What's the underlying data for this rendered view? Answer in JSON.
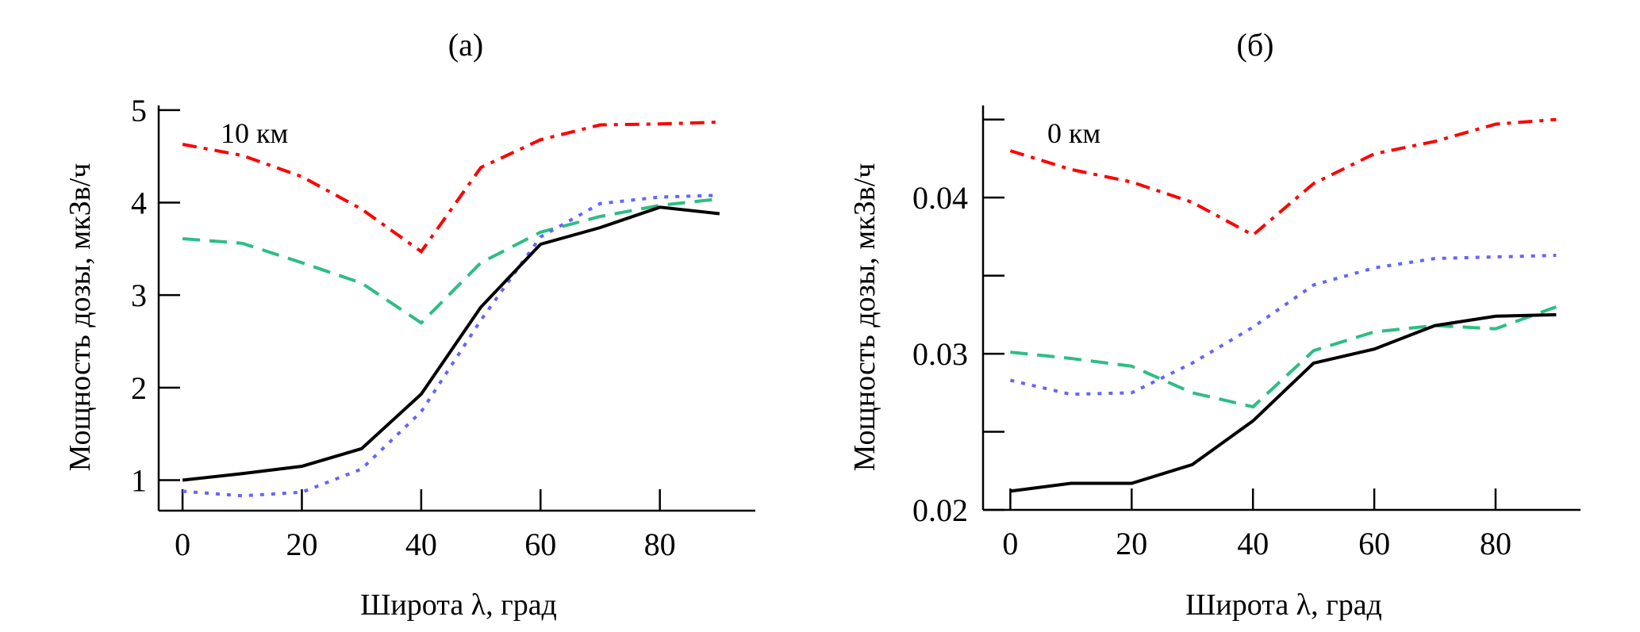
{
  "chart_data": [
    {
      "type": "line",
      "panel": "(a)",
      "title": "(a)",
      "annotation": "10 км",
      "xlabel": "Широта λ, град",
      "ylabel": "Мощность дозы, мкЗв/ч",
      "xlim": [
        -4,
        96
      ],
      "ylim": [
        0.67,
        5.05
      ],
      "xticks": [
        0,
        20,
        40,
        60,
        80
      ],
      "xtick_labels": [
        "0",
        "20",
        "40",
        "60",
        "80"
      ],
      "yticks": [
        1,
        2,
        3,
        4,
        5
      ],
      "ytick_labels": [
        "1",
        "2",
        "3",
        "4",
        "5"
      ],
      "minor_yticks": [],
      "grid": false,
      "x": [
        0,
        10,
        20,
        30,
        40,
        50,
        60,
        70,
        80,
        90
      ],
      "series": [
        {
          "name": "red-dashdot",
          "color": "#ff0000",
          "style": "dashdot",
          "values": [
            4.63,
            4.51,
            4.28,
            3.93,
            3.47,
            4.38,
            4.68,
            4.84,
            4.85,
            4.87
          ]
        },
        {
          "name": "green-dashed",
          "color": "#2ebd85",
          "style": "dashed",
          "values": [
            3.61,
            3.56,
            3.35,
            3.13,
            2.7,
            3.35,
            3.68,
            3.85,
            3.97,
            4.04
          ]
        },
        {
          "name": "blue-dotted",
          "color": "#6464ff",
          "style": "dotted",
          "values": [
            0.88,
            0.83,
            0.87,
            1.12,
            1.74,
            2.73,
            3.63,
            3.99,
            4.06,
            4.08
          ]
        },
        {
          "name": "black-solid",
          "color": "#000000",
          "style": "solid",
          "values": [
            1.0,
            1.07,
            1.15,
            1.34,
            1.93,
            2.87,
            3.55,
            3.73,
            3.95,
            3.88
          ]
        }
      ]
    },
    {
      "type": "line",
      "panel": "(б)",
      "title": "(б)",
      "annotation": "0 км",
      "xlabel": "Широта λ, град",
      "ylabel": "Мощность дозы, мкЗв/ч",
      "xlim": [
        -4.5,
        94
      ],
      "ylim": [
        0.02,
        0.0459
      ],
      "xticks": [
        0,
        20,
        40,
        60,
        80
      ],
      "xtick_labels": [
        "0",
        "20",
        "40",
        "60",
        "80"
      ],
      "yticks": [
        0.02,
        0.03,
        0.04
      ],
      "ytick_labels": [
        "0.02",
        "0.03",
        "0.04"
      ],
      "minor_yticks": [
        0.025,
        0.035,
        0.045
      ],
      "grid": false,
      "x": [
        0,
        10,
        20,
        30,
        40,
        50,
        60,
        70,
        80,
        90
      ],
      "series": [
        {
          "name": "red-dashdot",
          "color": "#ff0000",
          "style": "dashdot",
          "values": [
            0.043,
            0.0418,
            0.041,
            0.0397,
            0.0376,
            0.0409,
            0.0428,
            0.0436,
            0.0447,
            0.045
          ]
        },
        {
          "name": "blue-dotted",
          "color": "#6464ff",
          "style": "dotted",
          "values": [
            0.0283,
            0.0274,
            0.0275,
            0.0294,
            0.0317,
            0.0344,
            0.0355,
            0.0361,
            0.0362,
            0.0363
          ]
        },
        {
          "name": "green-dashed",
          "color": "#2ebd85",
          "style": "dashed",
          "values": [
            0.0301,
            0.0297,
            0.0292,
            0.0275,
            0.0266,
            0.0302,
            0.0314,
            0.0318,
            0.0316,
            0.033
          ]
        },
        {
          "name": "black-solid",
          "color": "#000000",
          "style": "solid",
          "values": [
            0.0212,
            0.0217,
            0.0217,
            0.0229,
            0.0257,
            0.0294,
            0.0303,
            0.0318,
            0.0324,
            0.0325
          ]
        }
      ]
    }
  ]
}
